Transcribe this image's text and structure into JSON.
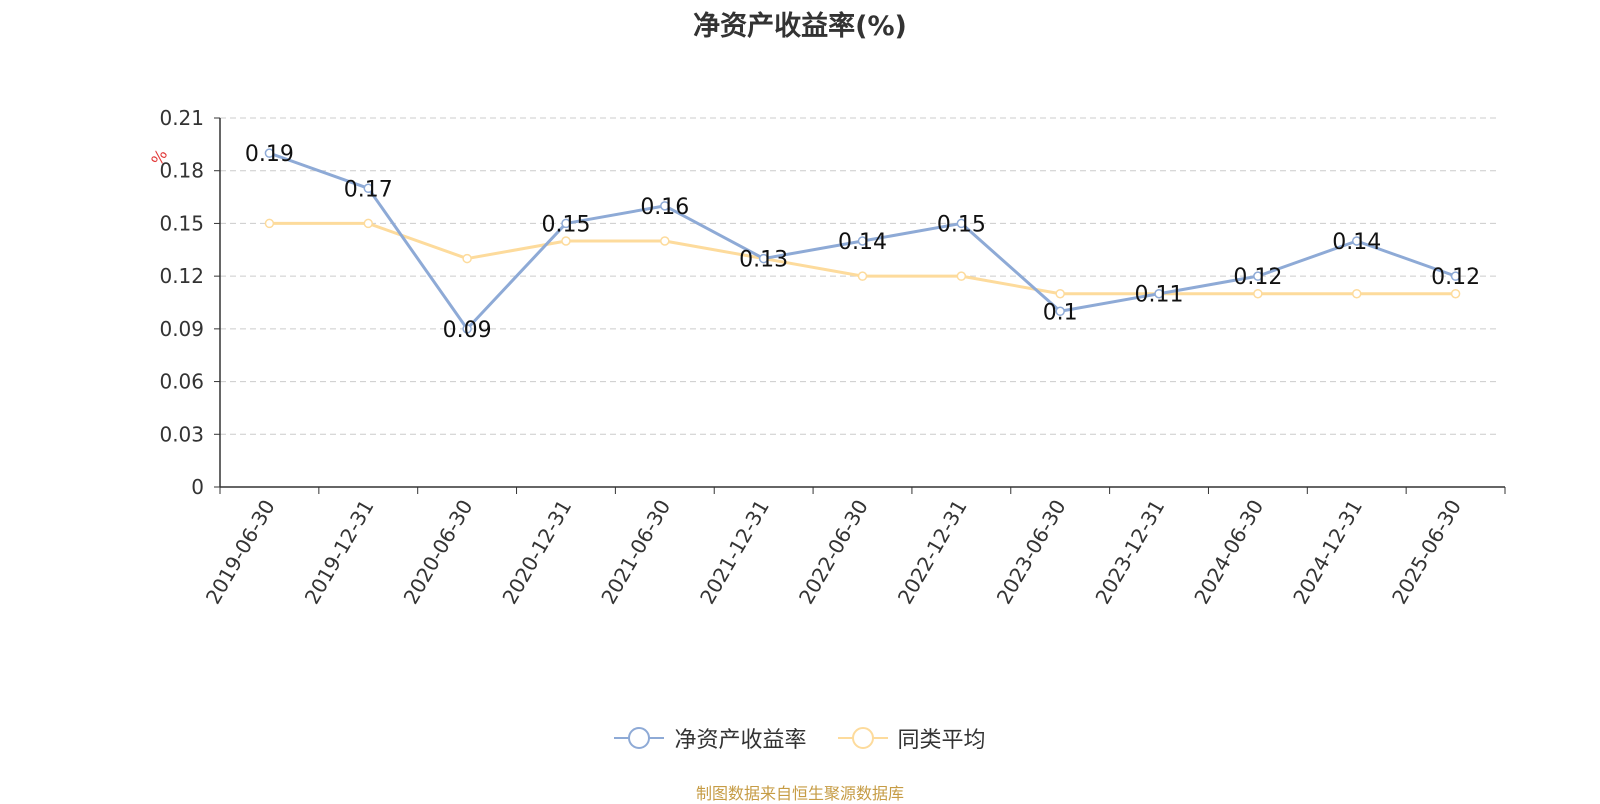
{
  "title": "净资产收益率(%)",
  "source": "制图数据来自恒生聚源数据库",
  "colors": {
    "series1": "#8eaad6",
    "series2": "#fddb9c",
    "unit": "#e23a3a",
    "grid": "#cccccc",
    "axis": "#333333"
  },
  "chart_data": {
    "type": "line",
    "title": "净资产收益率(%)",
    "y_unit": "%",
    "x": [
      "2019-06-30",
      "2019-12-31",
      "2020-06-30",
      "2020-12-31",
      "2021-06-30",
      "2021-12-31",
      "2022-06-30",
      "2022-12-31",
      "2023-06-30",
      "2023-12-31",
      "2024-06-30",
      "2024-12-31",
      "2025-06-30"
    ],
    "ylim": [
      0,
      0.21
    ],
    "yticks": [
      "0",
      "0.03",
      "0.06",
      "0.09",
      "0.12",
      "0.15",
      "0.18",
      "0.21"
    ],
    "grid": true,
    "legend_position": "bottom",
    "series": [
      {
        "name": "净资产收益率",
        "values": [
          0.19,
          0.17,
          0.09,
          0.15,
          0.16,
          0.13,
          0.14,
          0.15,
          0.1,
          0.11,
          0.12,
          0.14,
          0.12
        ],
        "labels": [
          "0.19",
          "0.17",
          "0.09",
          "0.15",
          "0.16",
          "0.13",
          "0.14",
          "0.15",
          "0.1",
          "0.11",
          "0.12",
          "0.14",
          "0.12"
        ]
      },
      {
        "name": "同类平均",
        "values": [
          0.15,
          0.15,
          0.13,
          0.14,
          0.14,
          0.13,
          0.12,
          0.12,
          0.11,
          0.11,
          0.11,
          0.11,
          0.11
        ]
      }
    ]
  }
}
